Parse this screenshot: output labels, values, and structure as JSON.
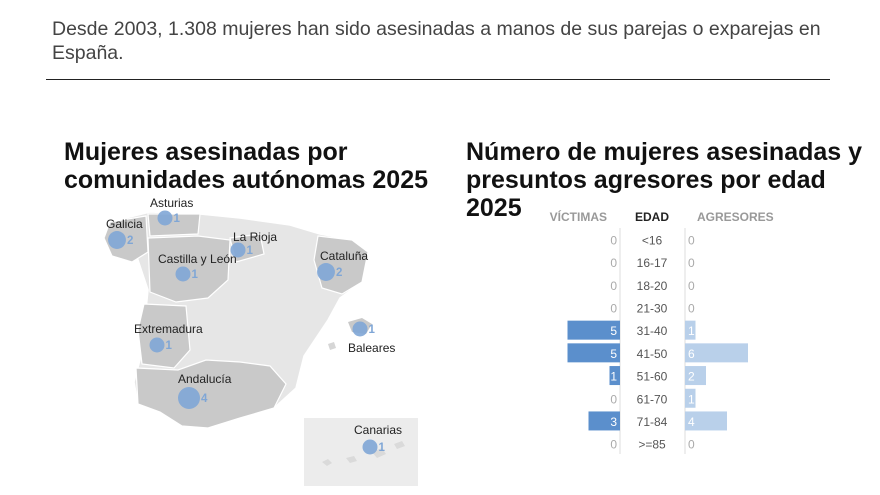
{
  "headline": "Desde 2003, 1.308 mujeres han sido asesinadas a manos de sus parejas o exparejas en España.",
  "chart_data": [
    {
      "type": "map",
      "title": "Mujeres asesinadas por comunidades autónomas 2025",
      "regions": [
        {
          "name": "Asturias",
          "value": 1
        },
        {
          "name": "Galicia",
          "value": 2
        },
        {
          "name": "La Rioja",
          "value": 1
        },
        {
          "name": "Castilla y León",
          "value": 1
        },
        {
          "name": "Cataluña",
          "value": 2
        },
        {
          "name": "Baleares",
          "value": 1
        },
        {
          "name": "Extremadura",
          "value": 1
        },
        {
          "name": "Andalucía",
          "value": 4
        },
        {
          "name": "Canarias",
          "value": 1
        }
      ],
      "colors": {
        "bubble": "#7fa6d6",
        "value_text": "#7fa6d6"
      }
    },
    {
      "type": "bar",
      "title": "Número de mujeres asesinadas y presuntos agresores por edad 2025",
      "column_headers": {
        "victims": "VÍCTIMAS",
        "age": "EDAD",
        "aggressors": "AGRESORES"
      },
      "categories": [
        "<16",
        "16-17",
        "18-20",
        "21-30",
        "31-40",
        "41-50",
        "51-60",
        "61-70",
        "71-84",
        ">=85"
      ],
      "series": [
        {
          "name": "VÍCTIMAS",
          "values": [
            0,
            0,
            0,
            0,
            5,
            5,
            1,
            0,
            3,
            0
          ],
          "color": "#5b8fcc"
        },
        {
          "name": "AGRESORES",
          "values": [
            0,
            0,
            0,
            0,
            1,
            6,
            2,
            1,
            4,
            0
          ],
          "color": "#b9d0ea"
        }
      ]
    }
  ]
}
